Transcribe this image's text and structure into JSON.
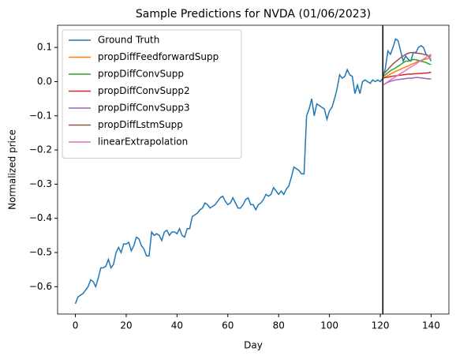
{
  "chart_data": {
    "type": "line",
    "title": "Sample Predictions for NVDA (01/06/2023)",
    "x_label": "Day",
    "y_label": "Normalized price",
    "xlim": [
      -7,
      147
    ],
    "ylim": [
      -0.68,
      0.165
    ],
    "xticks": [
      0,
      20,
      40,
      60,
      80,
      100,
      120,
      140
    ],
    "yticks": [
      {
        "value": -0.6,
        "label": "−0.6"
      },
      {
        "value": -0.5,
        "label": "−0.5"
      },
      {
        "value": -0.4,
        "label": "−0.4"
      },
      {
        "value": -0.3,
        "label": "−0.3"
      },
      {
        "value": -0.2,
        "label": "−0.2"
      },
      {
        "value": -0.1,
        "label": "−0.1"
      },
      {
        "value": 0,
        "label": "0.0"
      },
      {
        "value": 0.1,
        "label": "0.1"
      }
    ],
    "vline_x": 121,
    "vline_color": "#000000",
    "legend": "upper left",
    "grid": false,
    "series": [
      {
        "name": "Ground Truth",
        "color": "#1f77b4",
        "x": [
          0,
          1,
          2,
          3,
          4,
          5,
          6,
          7,
          8,
          9,
          10,
          11,
          12,
          13,
          14,
          15,
          16,
          17,
          18,
          19,
          20,
          21,
          22,
          23,
          24,
          25,
          26,
          27,
          28,
          29,
          30,
          31,
          32,
          33,
          34,
          35,
          36,
          37,
          38,
          39,
          40,
          41,
          42,
          43,
          44,
          45,
          46,
          47,
          48,
          49,
          50,
          51,
          52,
          53,
          54,
          55,
          56,
          57,
          58,
          59,
          60,
          61,
          62,
          63,
          64,
          65,
          66,
          67,
          68,
          69,
          70,
          71,
          72,
          73,
          74,
          75,
          76,
          77,
          78,
          79,
          80,
          81,
          82,
          83,
          84,
          85,
          86,
          87,
          88,
          89,
          90,
          91,
          92,
          93,
          94,
          95,
          96,
          97,
          98,
          99,
          100,
          101,
          102,
          103,
          104,
          105,
          106,
          107,
          108,
          109,
          110,
          111,
          112,
          113,
          114,
          115,
          116,
          117,
          118,
          119,
          120,
          121,
          122,
          123,
          124,
          125,
          126,
          127,
          128,
          129,
          130,
          131,
          132,
          133,
          134,
          135,
          136,
          137,
          138,
          139,
          140
        ],
        "values": [
          -0.65,
          -0.63,
          -0.625,
          -0.62,
          -0.61,
          -0.6,
          -0.58,
          -0.585,
          -0.6,
          -0.575,
          -0.545,
          -0.545,
          -0.54,
          -0.52,
          -0.545,
          -0.535,
          -0.5,
          -0.485,
          -0.5,
          -0.475,
          -0.475,
          -0.47,
          -0.495,
          -0.48,
          -0.455,
          -0.46,
          -0.48,
          -0.49,
          -0.51,
          -0.51,
          -0.44,
          -0.45,
          -0.445,
          -0.45,
          -0.465,
          -0.44,
          -0.435,
          -0.45,
          -0.44,
          -0.44,
          -0.445,
          -0.43,
          -0.45,
          -0.455,
          -0.43,
          -0.43,
          -0.395,
          -0.39,
          -0.385,
          -0.375,
          -0.37,
          -0.355,
          -0.36,
          -0.37,
          -0.365,
          -0.36,
          -0.35,
          -0.34,
          -0.335,
          -0.35,
          -0.36,
          -0.355,
          -0.34,
          -0.355,
          -0.37,
          -0.37,
          -0.36,
          -0.345,
          -0.34,
          -0.36,
          -0.36,
          -0.375,
          -0.36,
          -0.355,
          -0.345,
          -0.33,
          -0.335,
          -0.33,
          -0.31,
          -0.32,
          -0.33,
          -0.32,
          -0.33,
          -0.315,
          -0.305,
          -0.28,
          -0.25,
          -0.255,
          -0.26,
          -0.27,
          -0.27,
          -0.1,
          -0.08,
          -0.05,
          -0.1,
          -0.065,
          -0.07,
          -0.075,
          -0.08,
          -0.11,
          -0.085,
          -0.075,
          -0.05,
          -0.02,
          0.02,
          0.01,
          0.015,
          0.035,
          0.02,
          0.015,
          -0.035,
          -0.01,
          -0.035,
          0,
          0.005,
          0,
          -0.005,
          0.005,
          0,
          0.005,
          0,
          0.01,
          0.04,
          0.09,
          0.08,
          0.1,
          0.125,
          0.12,
          0.09,
          0.06,
          0.075,
          0.065,
          0.06,
          0.085,
          0.085,
          0.1,
          0.105,
          0.1,
          0.08,
          0.075,
          0.06
        ]
      },
      {
        "name": "propDiffFeedforwardSupp",
        "color": "#ff7f0e",
        "x": [
          121,
          122,
          123,
          124,
          125,
          126,
          127,
          128,
          129,
          130,
          131,
          132,
          133,
          134,
          135,
          136,
          137,
          138,
          139,
          140
        ],
        "values": [
          0.01,
          0.014,
          0.018,
          0.022,
          0.026,
          0.03,
          0.033,
          0.036,
          0.04,
          0.043,
          0.046,
          0.05,
          0.053,
          0.056,
          0.06,
          0.062,
          0.064,
          0.066,
          0.068,
          0.07
        ]
      },
      {
        "name": "propDiffConvSupp",
        "color": "#2ca02c",
        "x": [
          121,
          122,
          123,
          124,
          125,
          126,
          127,
          128,
          129,
          130,
          131,
          132,
          133,
          134,
          135,
          136,
          137,
          138,
          139,
          140
        ],
        "values": [
          0.015,
          0.02,
          0.026,
          0.032,
          0.036,
          0.04,
          0.045,
          0.05,
          0.055,
          0.06,
          0.06,
          0.062,
          0.065,
          0.064,
          0.062,
          0.06,
          0.058,
          0.056,
          0.052,
          0.05
        ]
      },
      {
        "name": "propDiffConvSupp2",
        "color": "#d62728",
        "x": [
          121,
          122,
          123,
          124,
          125,
          126,
          127,
          128,
          129,
          130,
          131,
          132,
          133,
          134,
          135,
          136,
          137,
          138,
          139,
          140
        ],
        "values": [
          0.01,
          0.012,
          0.013,
          0.015,
          0.016,
          0.017,
          0.018,
          0.019,
          0.02,
          0.021,
          0.022,
          0.022,
          0.023,
          0.023,
          0.024,
          0.024,
          0.025,
          0.025,
          0.026,
          0.028
        ]
      },
      {
        "name": "propDiffConvSupp3",
        "color": "#9467bd",
        "x": [
          121,
          122,
          123,
          124,
          125,
          126,
          127,
          128,
          129,
          130,
          131,
          132,
          133,
          134,
          135,
          136,
          137,
          138,
          139,
          140
        ],
        "values": [
          -0.01,
          -0.006,
          -0.002,
          0.001,
          0.003,
          0.005,
          0.006,
          0.007,
          0.008,
          0.009,
          0.01,
          0.01,
          0.011,
          0.012,
          0.012,
          0.011,
          0.01,
          0.009,
          0.008,
          0.008
        ]
      },
      {
        "name": "propDiffLstmSupp",
        "color": "#8c564b",
        "x": [
          121,
          122,
          123,
          124,
          125,
          126,
          127,
          128,
          129,
          130,
          131,
          132,
          133,
          134,
          135,
          136,
          137,
          138,
          139,
          140
        ],
        "values": [
          0.02,
          0.028,
          0.036,
          0.044,
          0.052,
          0.058,
          0.064,
          0.07,
          0.075,
          0.08,
          0.083,
          0.085,
          0.085,
          0.084,
          0.083,
          0.082,
          0.08,
          0.078,
          0.076,
          0.075
        ]
      },
      {
        "name": "linearExtrapolation",
        "color": "#e377c2",
        "x": [
          121,
          122,
          123,
          124,
          125,
          126,
          127,
          128,
          129,
          130,
          131,
          132,
          133,
          134,
          135,
          136,
          137,
          138,
          139,
          140
        ],
        "values": [
          -0.01,
          -0.005,
          0,
          0.005,
          0.009,
          0.014,
          0.019,
          0.024,
          0.028,
          0.033,
          0.038,
          0.043,
          0.047,
          0.052,
          0.057,
          0.062,
          0.066,
          0.071,
          0.076,
          0.08
        ]
      }
    ]
  }
}
